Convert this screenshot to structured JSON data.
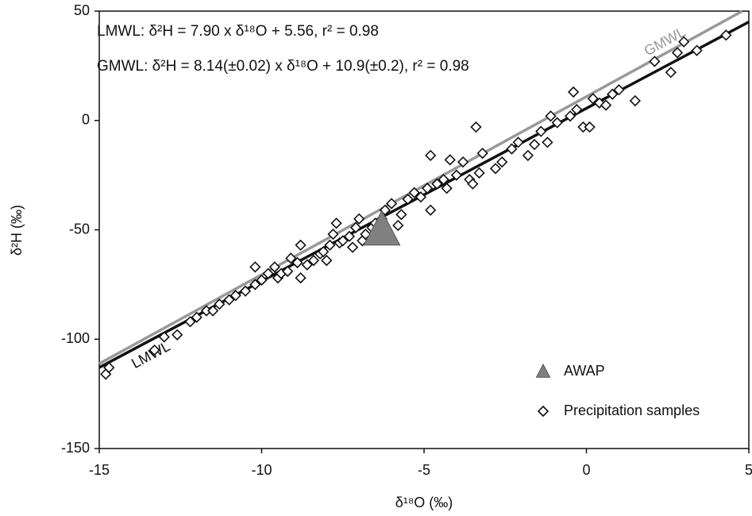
{
  "chart_data": {
    "type": "scatter",
    "x_label": "δ¹⁸O (‰)",
    "y_label": "δ²H (‰)",
    "annotations": [
      "LMWL: δ²H = 7.90 x δ¹⁸O + 5.56, r² = 0.98",
      "GMWL: δ²H = 8.14(±0.02) x δ¹⁸O + 10.9(±0.2), r² = 0.98"
    ],
    "xlim": [
      -15,
      5
    ],
    "ylim": [
      -150,
      50
    ],
    "xticks": [
      -15,
      -10,
      -5,
      0,
      5
    ],
    "yticks": [
      -150,
      -100,
      -50,
      0,
      50
    ],
    "legend": "lower right",
    "series": [
      {
        "name": "AWAP",
        "marker": "triangle",
        "color": "#808080",
        "x": [
          -6.3
        ],
        "values": [
          -50
        ]
      },
      {
        "name": "Precipitation samples",
        "marker": "diamond",
        "color": "#111111",
        "x": [
          -14.8,
          -14.7,
          -13.3,
          -13,
          -12.6,
          -12.2,
          -12,
          -11.7,
          -11.5,
          -11.3,
          -11,
          -10.8,
          -10.5,
          -10.2,
          -10.2,
          -10,
          -9.8,
          -9.6,
          -9.5,
          -9.4,
          -9.2,
          -9.1,
          -8.9,
          -8.8,
          -8.8,
          -8.6,
          -8.4,
          -8.2,
          -8.1,
          -8,
          -7.9,
          -7.8,
          -7.7,
          -7.6,
          -7.5,
          -7.3,
          -7.2,
          -7.1,
          -7,
          -6.9,
          -6.8,
          -6.6,
          -6.5,
          -6.3,
          -6.2,
          -6,
          -5.8,
          -5.7,
          -5.5,
          -5.3,
          -5.1,
          -4.9,
          -4.8,
          -4.8,
          -4.6,
          -4.4,
          -4.3,
          -4.2,
          -4,
          -3.8,
          -3.6,
          -3.5,
          -3.4,
          -3.3,
          -3.2,
          -2.8,
          -2.6,
          -2.3,
          -2.1,
          -1.8,
          -1.6,
          -1.4,
          -1.2,
          -1.1,
          -0.9,
          -0.5,
          -0.4,
          -0.3,
          -0.1,
          0.1,
          0.2,
          0.4,
          0.6,
          0.8,
          1,
          1.5,
          2.1,
          2.6,
          2.8,
          3,
          3.4,
          4.3
        ],
        "values": [
          -116,
          -113,
          -105,
          -99,
          -98,
          -92,
          -90,
          -87,
          -87,
          -84,
          -82,
          -80,
          -78,
          -75,
          -67,
          -73,
          -70,
          -67,
          -72,
          -70,
          -69,
          -63,
          -65,
          -72,
          -57,
          -66,
          -64,
          -61,
          -60,
          -64,
          -57,
          -52,
          -47,
          -56,
          -55,
          -53,
          -58,
          -49,
          -45,
          -55,
          -52,
          -49,
          -47,
          -45,
          -41,
          -38,
          -48,
          -43,
          -36,
          -33,
          -35,
          -31,
          -41,
          -16,
          -29,
          -27,
          -31,
          -18,
          -25,
          -19,
          -27,
          -29,
          -3,
          -24,
          -15,
          -22,
          -19,
          -13,
          -10,
          -16,
          -11,
          -5,
          -10,
          2,
          -1,
          2,
          13,
          5,
          -3,
          -3,
          10,
          8,
          7,
          12,
          14,
          9,
          27,
          22,
          31,
          36,
          32,
          39
        ]
      }
    ],
    "lines": [
      {
        "name": "GMWL",
        "color": "#999999",
        "x": [
          -15,
          4.8
        ],
        "values": [
          -111.2,
          50
        ]
      },
      {
        "name": "LMWL",
        "color": "#111111",
        "x": [
          -15,
          5
        ],
        "values": [
          -112.94,
          45.06
        ]
      }
    ]
  }
}
